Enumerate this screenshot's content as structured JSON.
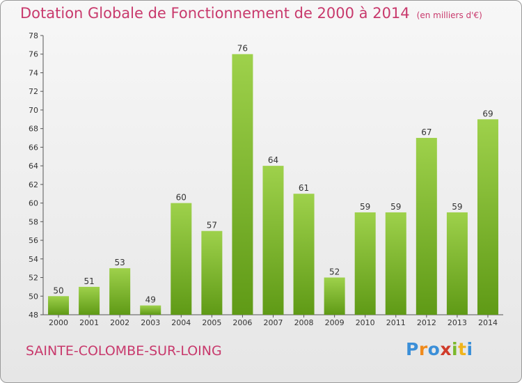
{
  "header": {
    "title": "Dotation Globale de Fonctionnement de 2000 à 2014",
    "unit": "(en milliers d'€)"
  },
  "footer": {
    "commune": "SAINTE-COLOMBE-SUR-LOING",
    "logo": [
      "P",
      "r",
      "o",
      "x",
      "i",
      "t",
      "i"
    ]
  },
  "colors": {
    "title": "#c8396c",
    "bar_light": "#9ed14b",
    "bar_dark": "#5f9a16",
    "logo": [
      "#3b8fd8",
      "#f08a1c",
      "#3b8fd8",
      "#d03b2a",
      "#7ab82b",
      "#f0b41c",
      "#3b8fd8"
    ]
  },
  "chart_data": {
    "type": "bar",
    "title": "Dotation Globale de Fonctionnement de 2000 à 2014",
    "ylabel": "(en milliers d'€)",
    "xlabel": "",
    "categories": [
      "2000",
      "2001",
      "2002",
      "2003",
      "2004",
      "2005",
      "2006",
      "2007",
      "2008",
      "2009",
      "2010",
      "2011",
      "2012",
      "2013",
      "2014"
    ],
    "values": [
      50,
      51,
      53,
      49,
      60,
      57,
      76,
      64,
      61,
      52,
      59,
      59,
      67,
      59,
      69
    ],
    "ylim": [
      48,
      78
    ],
    "yticks": [
      48,
      50,
      52,
      54,
      56,
      58,
      60,
      62,
      64,
      66,
      68,
      70,
      72,
      74,
      76,
      78
    ],
    "grid": false,
    "data_labels": true
  }
}
